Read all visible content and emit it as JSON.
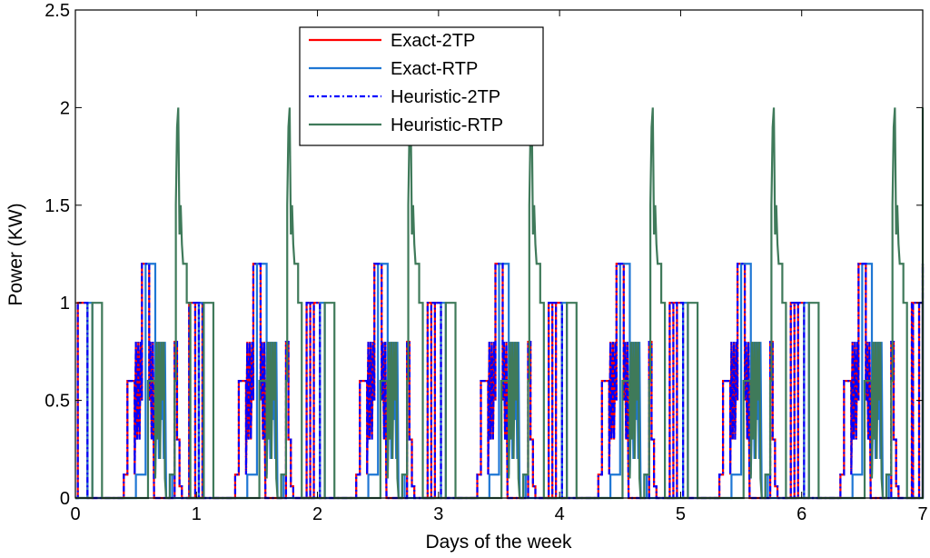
{
  "chart_data": {
    "type": "line",
    "title": "",
    "xlabel": "Days of the week",
    "ylabel": "Power (KW)",
    "xlim": [
      0,
      7
    ],
    "ylim": [
      0,
      2.5
    ],
    "xticks": [
      "0",
      "1",
      "2",
      "3",
      "4",
      "5",
      "6",
      "7"
    ],
    "yticks": [
      "0",
      "0.5",
      "1",
      "1.5",
      "2",
      "2.5"
    ],
    "grid": false,
    "legend": "top-center",
    "series": [
      {
        "name": "Exact-2TP",
        "color": "#ff0000",
        "style": "solid",
        "daily_profile": [
          [
            0,
            0
          ],
          [
            0.02,
            0
          ],
          [
            0.02,
            1
          ],
          [
            0.1,
            1
          ],
          [
            0.1,
            0
          ],
          [
            0.4,
            0
          ],
          [
            0.4,
            0.12
          ],
          [
            0.43,
            0.12
          ],
          [
            0.43,
            0.6
          ],
          [
            0.49,
            0.6
          ],
          [
            0.49,
            0.12
          ],
          [
            0.5,
            0.8
          ],
          [
            0.51,
            0.3
          ],
          [
            0.52,
            0.8
          ],
          [
            0.53,
            0.3
          ],
          [
            0.54,
            0.8
          ],
          [
            0.55,
            0.5
          ],
          [
            0.55,
            1.2
          ],
          [
            0.61,
            1.2
          ],
          [
            0.61,
            0.5
          ],
          [
            0.62,
            0.8
          ],
          [
            0.63,
            0.3
          ],
          [
            0.64,
            0.8
          ],
          [
            0.65,
            0
          ],
          [
            0.82,
            0
          ],
          [
            0.82,
            0.8
          ],
          [
            0.84,
            0.8
          ],
          [
            0.84,
            0.3
          ],
          [
            0.86,
            0.3
          ],
          [
            0.86,
            0.06
          ],
          [
            0.88,
            0.06
          ],
          [
            0.88,
            0
          ],
          [
            0.99,
            0
          ],
          [
            0.99,
            1
          ],
          [
            1.05,
            1
          ],
          [
            1.05,
            0
          ]
        ]
      },
      {
        "name": "Exact-RTP",
        "color": "#1f77d4",
        "style": "solid",
        "daily_profile": [
          [
            0,
            0
          ],
          [
            0.1,
            0
          ],
          [
            0.1,
            1
          ],
          [
            0.14,
            1
          ],
          [
            0.14,
            0
          ],
          [
            0.5,
            0
          ],
          [
            0.5,
            0.12
          ],
          [
            0.58,
            0.12
          ],
          [
            0.58,
            1.2
          ],
          [
            0.66,
            1.2
          ],
          [
            0.66,
            0.12
          ],
          [
            0.68,
            0.8
          ],
          [
            0.69,
            0.2
          ],
          [
            0.7,
            0.8
          ],
          [
            0.71,
            0.4
          ],
          [
            0.72,
            0.8
          ],
          [
            0.73,
            0.2
          ],
          [
            0.74,
            0.8
          ],
          [
            0.75,
            0
          ],
          [
            0.78,
            0
          ],
          [
            0.78,
            0.12
          ],
          [
            0.8,
            0.12
          ],
          [
            0.8,
            0
          ]
        ]
      },
      {
        "name": "Heuristic-2TP",
        "color": "#0000ff",
        "style": "dashdot",
        "daily_profile": [
          [
            0,
            0
          ],
          [
            0.02,
            0
          ],
          [
            0.02,
            1
          ],
          [
            0.1,
            1
          ],
          [
            0.1,
            0
          ],
          [
            0.4,
            0
          ],
          [
            0.4,
            0.12
          ],
          [
            0.43,
            0.12
          ],
          [
            0.43,
            0.6
          ],
          [
            0.49,
            0.6
          ],
          [
            0.49,
            0.12
          ],
          [
            0.5,
            0.8
          ],
          [
            0.51,
            0.3
          ],
          [
            0.52,
            0.8
          ],
          [
            0.53,
            0.3
          ],
          [
            0.54,
            0.8
          ],
          [
            0.55,
            0.5
          ],
          [
            0.55,
            1.2
          ],
          [
            0.61,
            1.2
          ],
          [
            0.61,
            0.5
          ],
          [
            0.62,
            0.8
          ],
          [
            0.63,
            0.3
          ],
          [
            0.64,
            0.8
          ],
          [
            0.65,
            0
          ],
          [
            0.82,
            0
          ],
          [
            0.82,
            0.8
          ],
          [
            0.84,
            0.8
          ],
          [
            0.84,
            0.3
          ],
          [
            0.86,
            0.3
          ],
          [
            0.86,
            0.06
          ],
          [
            0.88,
            0.06
          ],
          [
            0.88,
            0
          ],
          [
            0.99,
            0
          ],
          [
            0.99,
            1
          ],
          [
            1.05,
            1
          ],
          [
            1.05,
            0
          ]
        ]
      },
      {
        "name": "Heuristic-RTP",
        "color": "#3f7a5a",
        "style": "solid",
        "daily_profile": [
          [
            0,
            0
          ],
          [
            0.14,
            0
          ],
          [
            0.14,
            1
          ],
          [
            0.22,
            1
          ],
          [
            0.22,
            0
          ],
          [
            0.6,
            0
          ],
          [
            0.6,
            0.6
          ],
          [
            0.66,
            0.6
          ],
          [
            0.66,
            0.1
          ],
          [
            0.67,
            0.8
          ],
          [
            0.68,
            0.3
          ],
          [
            0.69,
            0.8
          ],
          [
            0.7,
            0.2
          ],
          [
            0.71,
            0.8
          ],
          [
            0.72,
            0.5
          ],
          [
            0.73,
            0.8
          ],
          [
            0.74,
            0.1
          ],
          [
            0.75,
            0
          ],
          [
            0.78,
            0
          ],
          [
            0.78,
            0.12
          ],
          [
            0.82,
            0.12
          ],
          [
            0.82,
            0.6
          ],
          [
            0.83,
            0.6
          ],
          [
            0.83,
            1.5
          ],
          [
            0.84,
            1.9
          ],
          [
            0.85,
            2.0
          ],
          [
            0.86,
            1.35
          ],
          [
            0.87,
            1.5
          ],
          [
            0.88,
            1.3
          ],
          [
            0.89,
            1.2
          ],
          [
            0.92,
            1.2
          ],
          [
            0.92,
            1.0
          ],
          [
            0.95,
            1.0
          ],
          [
            0.95,
            0
          ]
        ]
      }
    ],
    "day_offsets": [
      0.0,
      0.92,
      1.92,
      2.92,
      3.92,
      4.92,
      5.92,
      6.9
    ]
  }
}
